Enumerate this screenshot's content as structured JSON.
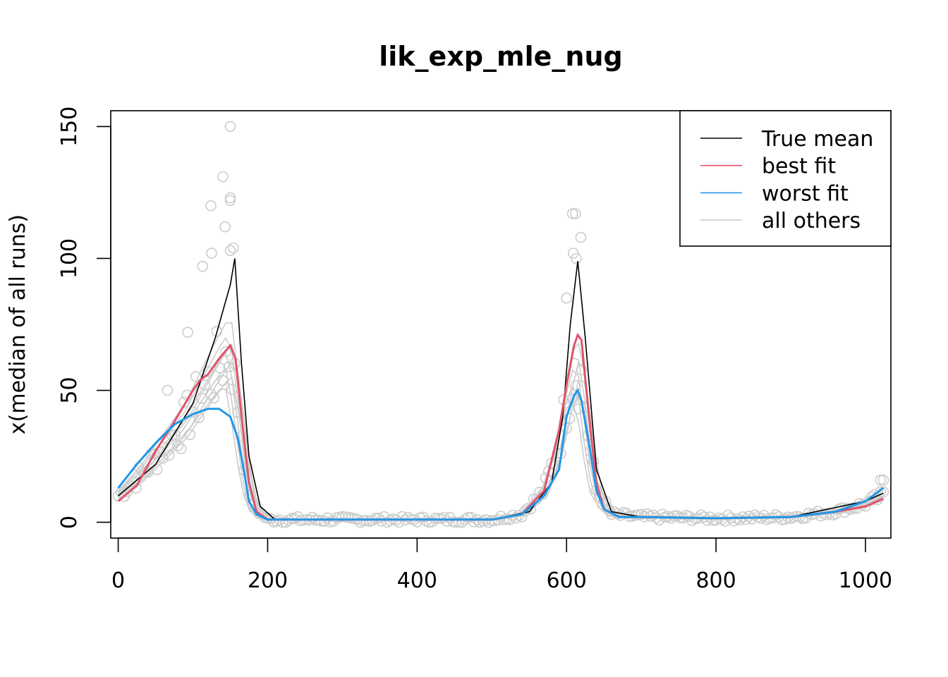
{
  "chart_data": {
    "type": "line",
    "title": "lik_exp_mle_nug",
    "xlabel": "",
    "ylabel": "x(median of all runs)",
    "xlim": [
      -10,
      1034
    ],
    "ylim": [
      -6,
      156
    ],
    "x_ticks": [
      0,
      200,
      400,
      600,
      800,
      1000
    ],
    "y_ticks": [
      0,
      50,
      100,
      150
    ],
    "legend": {
      "position": "top-right"
    },
    "colors": {
      "true_mean": "#000000",
      "best_fit": "#DF536B",
      "worst_fit": "#2297E6",
      "all_others": "#CCCCCC"
    },
    "series": [
      {
        "name": "True mean",
        "x": [
          0,
          50,
          100,
          130,
          150,
          156,
          165,
          175,
          190,
          210,
          300,
          400,
          500,
          550,
          580,
          595,
          605,
          615,
          625,
          640,
          660,
          700,
          800,
          900,
          1000,
          1024
        ],
        "y": [
          10,
          22,
          45,
          70,
          90,
          100,
          60,
          25,
          6,
          1,
          1,
          1,
          1,
          4,
          15,
          40,
          75,
          99,
          70,
          20,
          4,
          2,
          1.5,
          2,
          8,
          11
        ]
      },
      {
        "name": "best fit",
        "x": [
          0,
          25,
          50,
          75,
          100,
          110,
          120,
          135,
          150,
          157,
          165,
          175,
          185,
          200,
          300,
          400,
          500,
          540,
          570,
          590,
          600,
          610,
          615,
          620,
          630,
          640,
          650,
          670,
          700,
          800,
          900,
          960,
          1000,
          1024
        ],
        "y": [
          8,
          14,
          27,
          38,
          50,
          54,
          56,
          62,
          67,
          62,
          40,
          15,
          4,
          1,
          1,
          1,
          1,
          3,
          12,
          35,
          52,
          67,
          71,
          69,
          40,
          15,
          5,
          2,
          2,
          1.5,
          2,
          4,
          6,
          9
        ]
      },
      {
        "name": "worst fit",
        "x": [
          0,
          25,
          50,
          75,
          100,
          120,
          135,
          150,
          160,
          168,
          175,
          185,
          200,
          300,
          400,
          500,
          540,
          570,
          590,
          600,
          610,
          615,
          620,
          630,
          640,
          650,
          670,
          700,
          800,
          900,
          960,
          1000,
          1024
        ],
        "y": [
          13,
          22,
          30,
          37,
          41,
          43,
          43,
          40,
          32,
          20,
          8,
          3,
          1,
          1,
          1,
          1,
          3,
          10,
          20,
          40,
          48,
          50,
          46,
          30,
          12,
          5,
          2,
          2,
          1.5,
          2,
          4,
          8,
          13
        ]
      },
      {
        "name": "all others",
        "x": [
          0,
          30,
          60,
          90,
          110,
          125,
          140,
          150,
          160,
          170,
          180,
          200,
          300,
          400,
          500,
          540,
          570,
          590,
          600,
          610,
          620,
          630,
          640,
          660,
          700,
          800,
          900,
          960,
          1000,
          1024
        ],
        "y": [
          10,
          18,
          28,
          38,
          48,
          55,
          62,
          65,
          45,
          20,
          6,
          1,
          1,
          1,
          1,
          3,
          12,
          30,
          45,
          58,
          55,
          30,
          12,
          3,
          2,
          1.5,
          2,
          4,
          7,
          10
        ]
      }
    ],
    "annotations": {
      "point_outliers": [
        {
          "x": 150,
          "y": 150
        },
        {
          "x": 140,
          "y": 131
        },
        {
          "x": 150,
          "y": 123
        },
        {
          "x": 150,
          "y": 122
        },
        {
          "x": 124,
          "y": 120
        },
        {
          "x": 143,
          "y": 112
        },
        {
          "x": 150,
          "y": 103
        },
        {
          "x": 154,
          "y": 104
        },
        {
          "x": 125,
          "y": 102
        },
        {
          "x": 113,
          "y": 97
        },
        {
          "x": 608,
          "y": 117
        },
        {
          "x": 612,
          "y": 117
        },
        {
          "x": 619,
          "y": 108
        },
        {
          "x": 609,
          "y": 102
        },
        {
          "x": 613,
          "y": 100
        },
        {
          "x": 600,
          "y": 85
        },
        {
          "x": 1020,
          "y": 16
        },
        {
          "x": 1024,
          "y": 16
        },
        {
          "x": 66,
          "y": 50
        },
        {
          "x": 93,
          "y": 72
        }
      ]
    }
  }
}
